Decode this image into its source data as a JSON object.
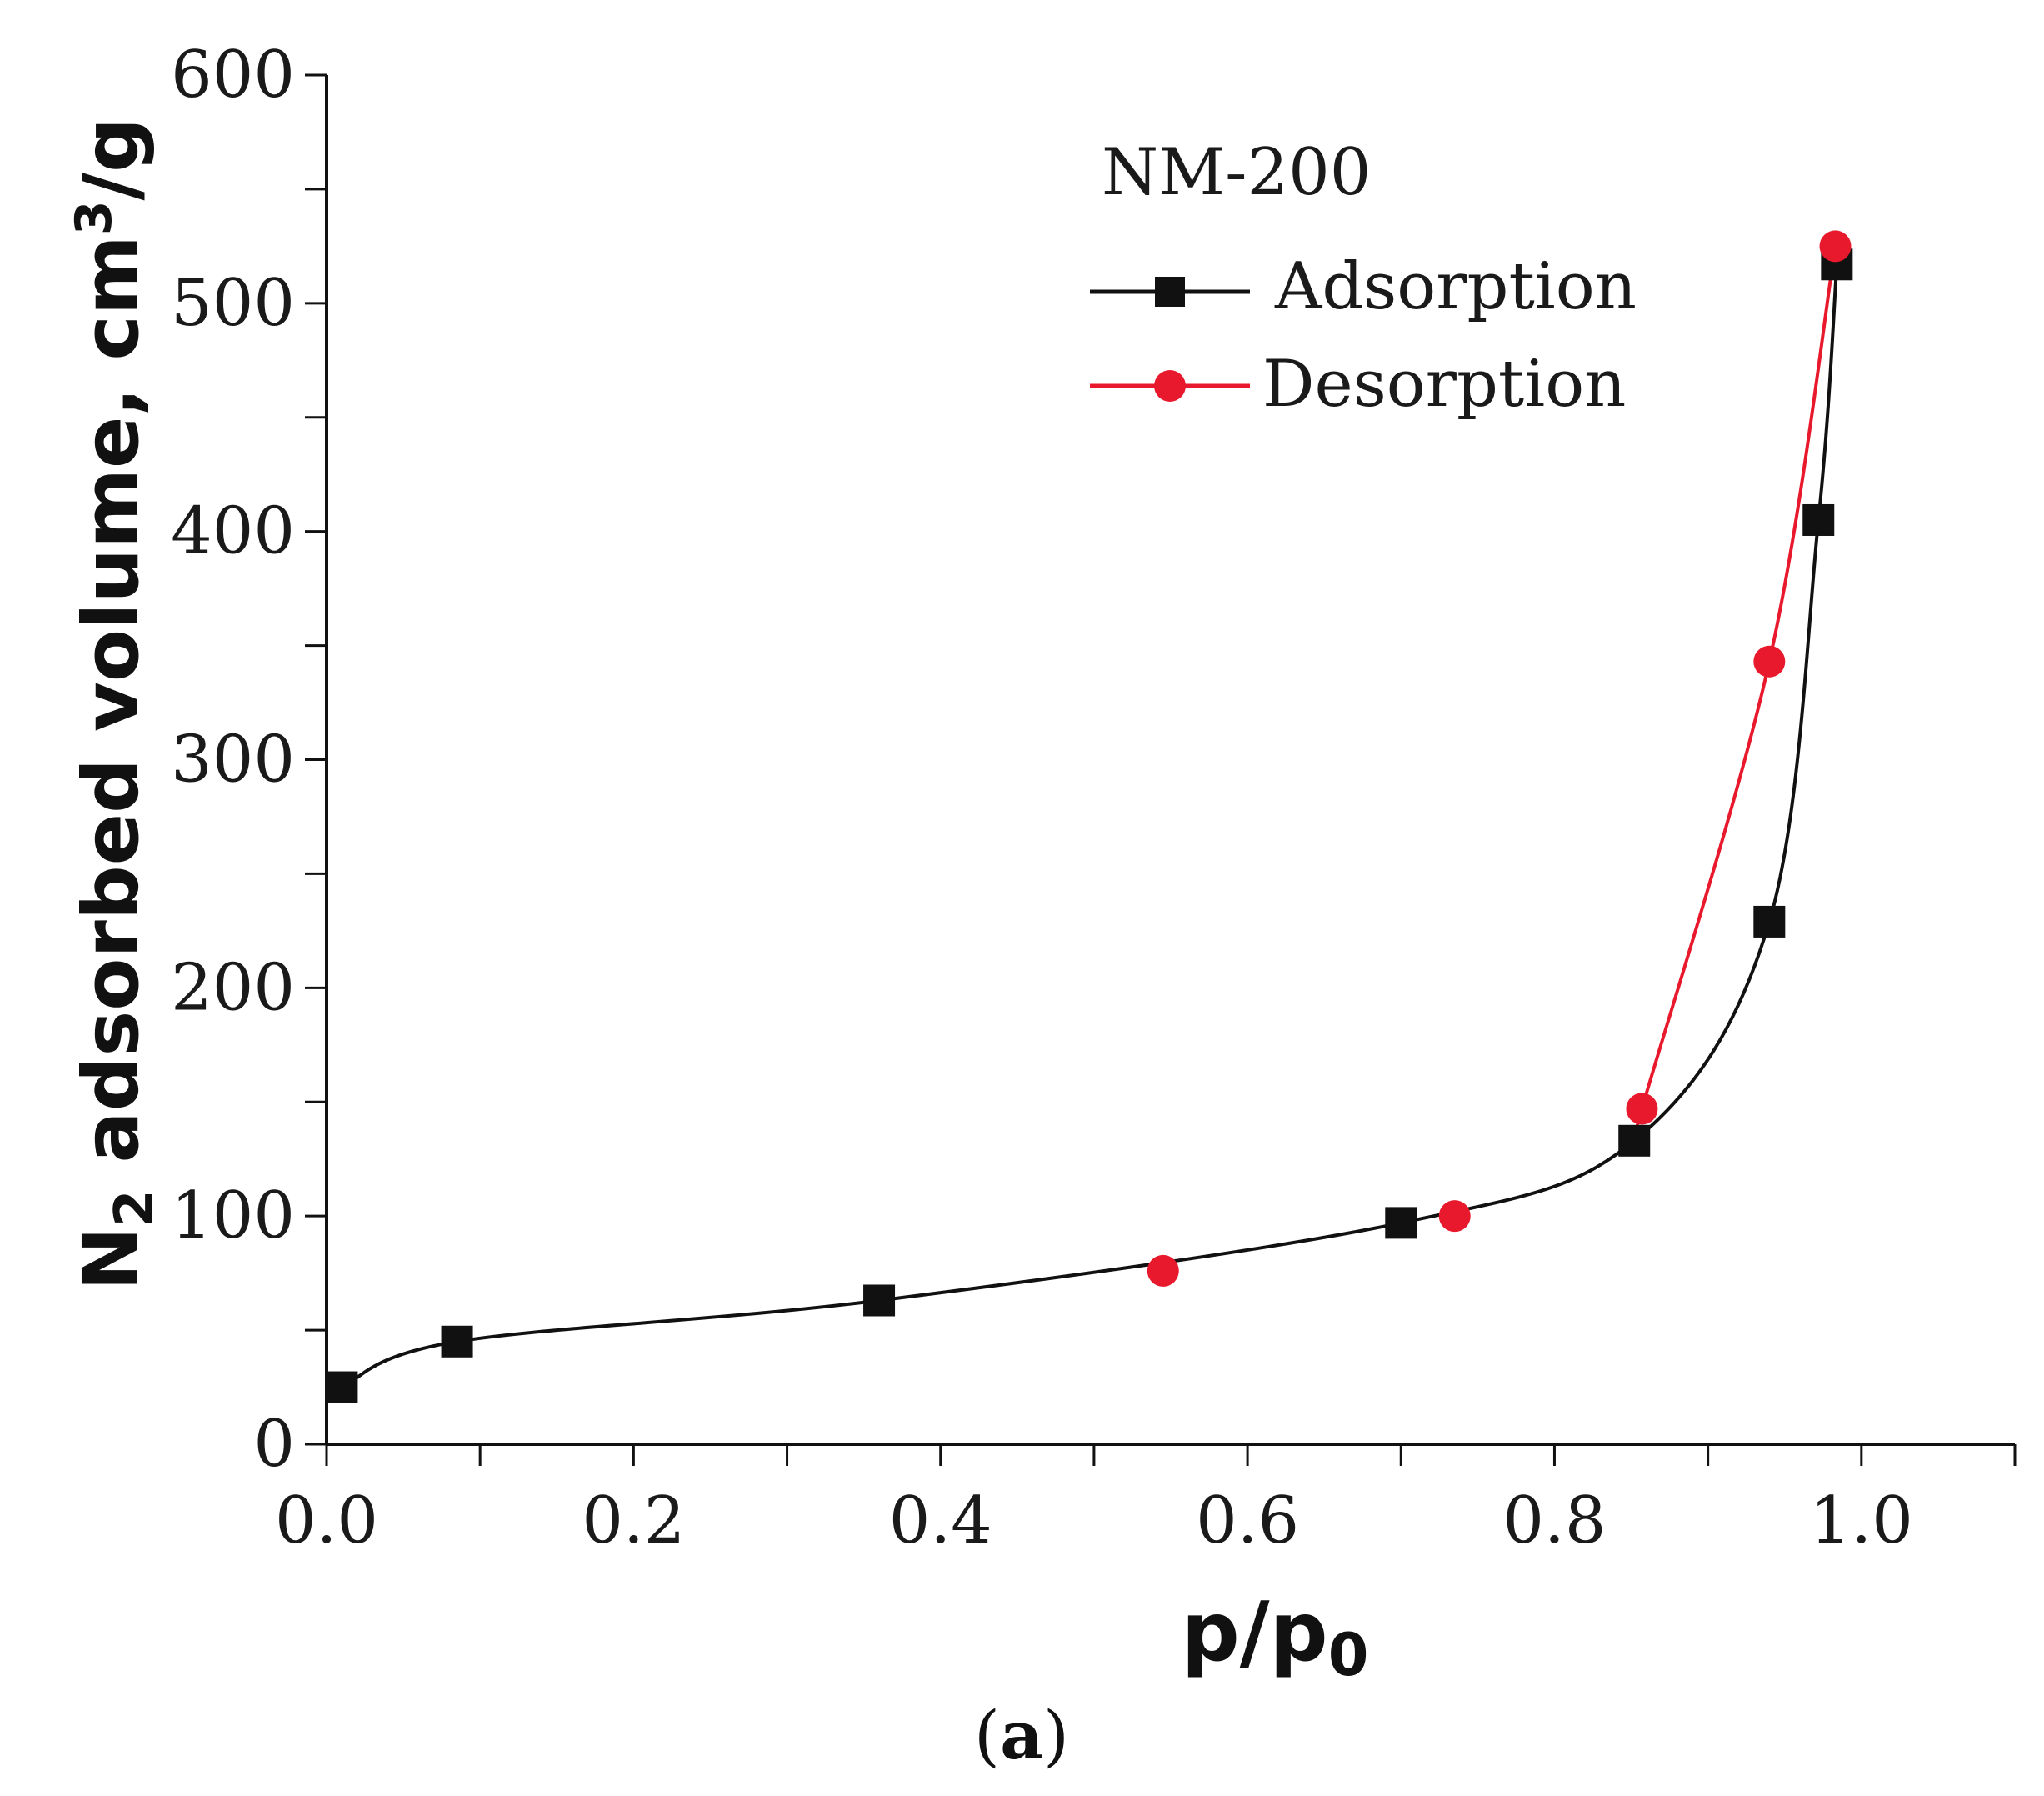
{
  "chart_data": {
    "type": "line",
    "legend_title": "NM-200",
    "xlabel_main": "p/p",
    "xlabel_sub": "0",
    "ylabel_main": "N",
    "ylabel_sub": "2",
    "ylabel_rest": " adsorbed volume, cm",
    "ylabel_sup": "3",
    "ylabel_end": "/g",
    "panel_label_open": "(",
    "panel_label_letter": "a",
    "panel_label_close": ")",
    "xlim": [
      0.0,
      1.1
    ],
    "ylim": [
      0,
      600
    ],
    "x_ticks": [
      0.0,
      0.2,
      0.4,
      0.6,
      0.8,
      1.0
    ],
    "x_tick_labels": [
      "0.0",
      "0.2",
      "0.4",
      "0.6",
      "0.8",
      "1.0"
    ],
    "x_minor_ticks": [
      0.1,
      0.3,
      0.5,
      0.7,
      0.9,
      1.1
    ],
    "y_ticks": [
      0,
      100,
      200,
      300,
      400,
      500,
      600
    ],
    "y_tick_labels": [
      "0",
      "100",
      "200",
      "300",
      "400",
      "500",
      "600"
    ],
    "y_minor_ticks": [
      50,
      150,
      250,
      350,
      450,
      550
    ],
    "legend_position": "top-right",
    "grid": false,
    "series": [
      {
        "name": "Adsorption",
        "color": "#111111",
        "marker": "square",
        "x": [
          0.01,
          0.085,
          0.36,
          0.7,
          0.852,
          0.94,
          0.972,
          0.984
        ],
        "y": [
          25,
          45,
          63,
          97,
          133,
          229,
          405,
          517
        ]
      },
      {
        "name": "Desorption",
        "color": "#e8192c",
        "marker": "circle",
        "x": [
          0.545,
          0.735,
          0.857,
          0.94,
          0.983
        ],
        "y": [
          76,
          100,
          147,
          343,
          525
        ]
      }
    ]
  }
}
